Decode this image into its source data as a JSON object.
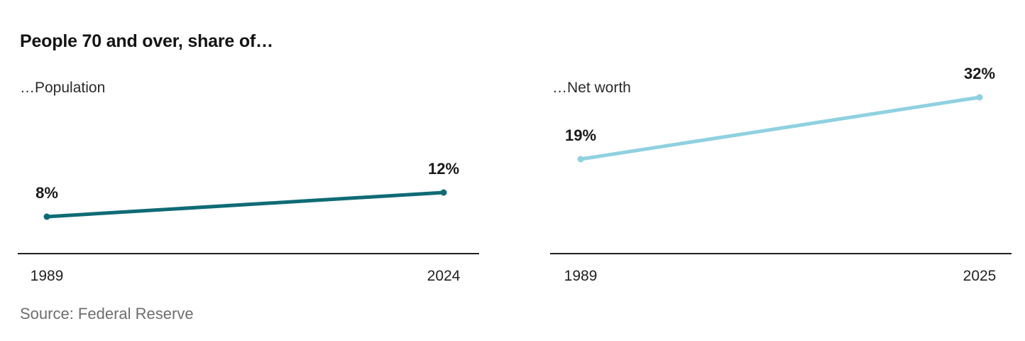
{
  "header": {
    "title": "People 70 and over, share of…"
  },
  "footer": {
    "source": "Source: Federal Reserve"
  },
  "chart_data": [
    {
      "type": "line",
      "title": "…Population",
      "x": [
        1989,
        2024
      ],
      "values": [
        8,
        12
      ],
      "value_labels": [
        "8%",
        "12%"
      ],
      "xticks": [
        "1989",
        "2024"
      ],
      "color": "#0f6b75",
      "ylabel": "",
      "xlabel": "",
      "grid": false,
      "legend": "none"
    },
    {
      "type": "line",
      "title": "…Net worth",
      "x": [
        1989,
        2025
      ],
      "values": [
        19,
        32
      ],
      "value_labels": [
        "19%",
        "32%"
      ],
      "xticks": [
        "1989",
        "2025"
      ],
      "color": "#8fd1e0",
      "ylabel": "",
      "xlabel": "",
      "grid": false,
      "legend": "none"
    }
  ]
}
